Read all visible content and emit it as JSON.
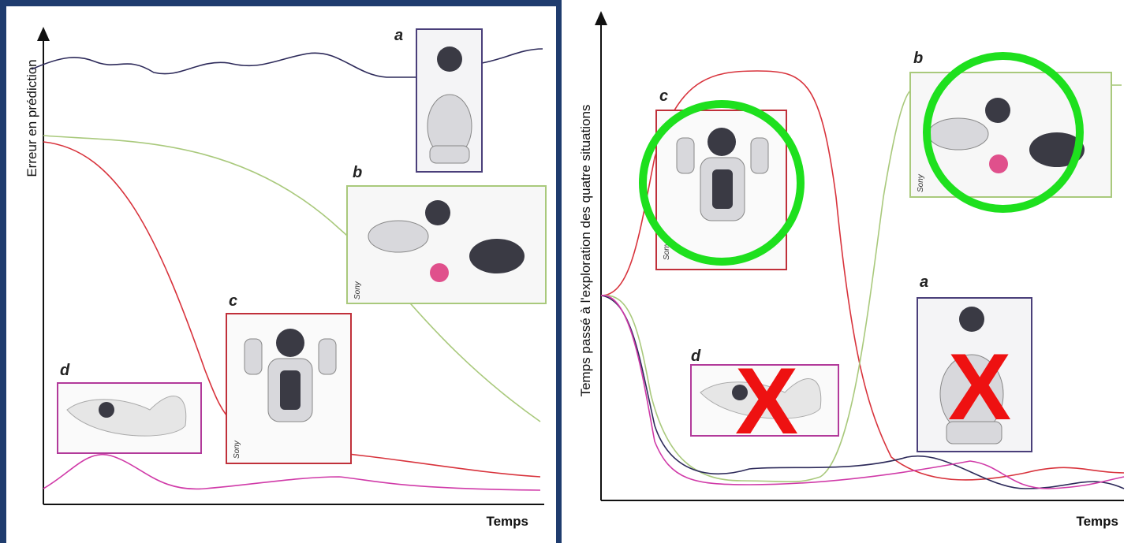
{
  "left": {
    "y_label": "Erreur en prédiction",
    "x_label": "Temps",
    "labels": {
      "a": "a",
      "b": "b",
      "c": "c",
      "d": "d"
    },
    "credit": "Sony"
  },
  "right": {
    "y_label": "Temps passé à l'exploration des quatre situations",
    "x_label": "Temps",
    "labels": {
      "a": "a",
      "b": "b",
      "c": "c",
      "d": "d"
    },
    "credit": "Sony",
    "marks": [
      "X",
      "X"
    ]
  }
}
